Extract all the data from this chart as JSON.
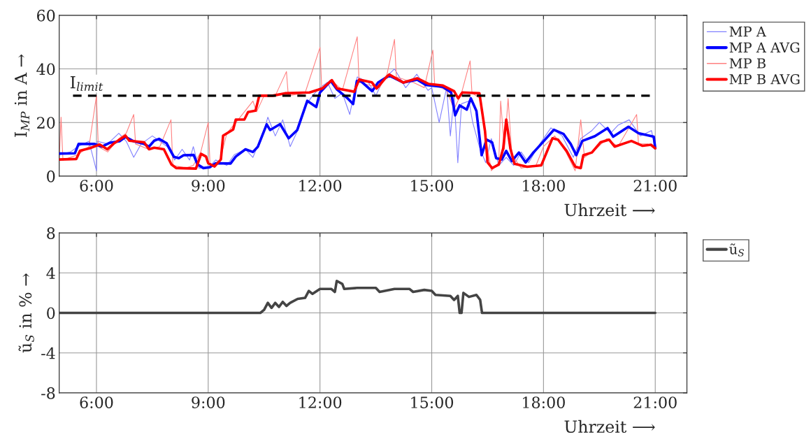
{
  "chart_data": [
    {
      "type": "line",
      "ylabel": "I$_{MP}$ in A →",
      "xlabel": "Uhrzeit ⟶",
      "xlim": [
        5,
        21.85
      ],
      "xticks": [
        {
          "value": 6,
          "label": "6:00"
        },
        {
          "value": 9,
          "label": "9:00"
        },
        {
          "value": 12,
          "label": "12:00"
        },
        {
          "value": 15,
          "label": "15:00"
        },
        {
          "value": 18,
          "label": "18:00"
        },
        {
          "value": 21,
          "label": "21:00"
        }
      ],
      "ylim": [
        0,
        60
      ],
      "yticks": [
        0,
        20,
        40,
        60
      ],
      "grid": true,
      "legend": "right",
      "ref_lines": [
        {
          "axis": "y",
          "value": 30,
          "label": "I$_{limit}$",
          "color": "#000000",
          "line_style": "dashed"
        }
      ],
      "series": [
        {
          "name": "MP A",
          "color": "#8080ff",
          "x": [
            5.0,
            5.3,
            5.5,
            5.8,
            6.0,
            6.02,
            6.3,
            6.6,
            6.8,
            7.0,
            7.2,
            7.5,
            7.7,
            7.9,
            8.1,
            8.3,
            8.5,
            8.6,
            8.75,
            9.0,
            9.2,
            9.5,
            9.7,
            10.0,
            10.2,
            10.5,
            10.6,
            10.8,
            11.0,
            11.2,
            11.4,
            11.6,
            11.8,
            12.0,
            12.2,
            12.4,
            12.6,
            12.8,
            13.0,
            13.3,
            13.5,
            13.7,
            14.0,
            14.3,
            14.6,
            14.9,
            15.0,
            15.2,
            15.4,
            15.5,
            15.6,
            15.7,
            15.8,
            16.0,
            16.1,
            16.3,
            16.45,
            16.6,
            16.8,
            17.0,
            17.2,
            17.4,
            17.6,
            17.9,
            18.2,
            18.5,
            18.8,
            19.0,
            19.3,
            19.5,
            19.8,
            20.0,
            20.3,
            20.6,
            20.9,
            21.0
          ],
          "values": [
            8,
            9,
            11,
            13,
            2,
            13,
            12,
            16,
            13,
            7,
            12,
            15,
            13,
            11,
            6,
            10,
            6,
            11,
            3,
            3,
            6,
            4,
            8,
            10,
            7,
            17,
            22,
            15,
            21,
            11,
            17,
            26,
            30,
            33,
            35,
            29,
            31,
            23,
            37,
            35,
            30,
            36,
            40,
            33,
            38,
            32,
            33,
            20,
            33,
            15,
            30,
            5,
            27,
            28,
            20,
            10,
            5,
            14,
            4,
            7,
            4,
            9,
            5,
            12,
            18,
            15,
            7,
            14,
            17,
            20,
            16,
            19,
            21,
            15,
            17,
            10
          ]
        },
        {
          "name": "MP A AVG",
          "color": "#0000ff",
          "x": [
            5.0,
            5.42,
            5.52,
            5.95,
            6.15,
            6.35,
            6.62,
            6.78,
            7.0,
            7.28,
            7.41,
            7.55,
            7.68,
            7.88,
            8.08,
            8.21,
            8.34,
            8.61,
            8.71,
            8.87,
            9.04,
            9.2,
            9.6,
            9.74,
            10.0,
            10.2,
            10.33,
            10.57,
            10.66,
            10.93,
            11.16,
            11.39,
            11.66,
            11.9,
            12.0,
            12.29,
            12.46,
            12.72,
            12.89,
            12.99,
            13.1,
            13.4,
            13.56,
            13.86,
            14.24,
            14.61,
            14.84,
            15.3,
            15.52,
            15.63,
            15.75,
            15.94,
            16.05,
            16.2,
            16.34,
            16.47,
            16.62,
            16.73,
            16.88,
            17.0,
            17.15,
            17.34,
            17.52,
            17.71,
            17.94,
            18.28,
            18.54,
            18.73,
            18.88,
            19.04,
            19.38,
            19.72,
            19.87,
            20.28,
            20.55,
            20.96,
            21.0
          ],
          "values": [
            8.4,
            8.5,
            12,
            12,
            11,
            12.4,
            13,
            14.6,
            13,
            12,
            11,
            13.2,
            13.9,
            12.3,
            7.2,
            6.7,
            7.8,
            7.9,
            4.4,
            3,
            3.3,
            4.8,
            4.7,
            7.3,
            10,
            9,
            10.9,
            19.3,
            17.2,
            19.4,
            14.1,
            17.2,
            28.1,
            25.8,
            31.2,
            35.5,
            32.3,
            29.3,
            26.9,
            35.5,
            35.4,
            31.7,
            34.9,
            37.5,
            34.9,
            36,
            34,
            33.3,
            31.2,
            22.7,
            26.4,
            24.8,
            29,
            24.3,
            7.8,
            13.6,
            12.6,
            6.7,
            6.2,
            9.4,
            5.6,
            8.8,
            5.1,
            8.5,
            12,
            17.3,
            15.7,
            12,
            7.8,
            13.1,
            14.9,
            17.9,
            14.7,
            18.4,
            16,
            14.7,
            10.4
          ]
        },
        {
          "name": "MP B",
          "color": "#ff8080",
          "x": [
            5.0,
            5.05,
            5.1,
            5.5,
            5.8,
            6.0,
            6.05,
            6.3,
            6.6,
            6.8,
            7.0,
            7.05,
            7.4,
            7.7,
            8.0,
            8.05,
            8.4,
            8.6,
            8.8,
            9.0,
            9.05,
            9.3,
            9.5,
            9.8,
            10.2,
            10.3,
            10.5,
            10.8,
            11.1,
            11.15,
            11.6,
            12.0,
            12.05,
            12.3,
            12.6,
            13.0,
            13.05,
            13.3,
            13.6,
            13.8,
            14.0,
            14.05,
            14.5,
            14.8,
            15.03,
            15.08,
            15.4,
            15.6,
            15.8,
            16.03,
            16.08,
            16.3,
            16.45,
            16.6,
            16.8,
            16.85,
            16.95,
            17.05,
            17.15,
            17.4,
            17.8,
            18.0,
            18.3,
            18.6,
            18.85,
            19.0,
            19.1,
            19.4,
            19.7,
            20.0,
            20.5,
            20.55,
            20.8,
            21.0
          ],
          "values": [
            6,
            22,
            6,
            8,
            11,
            30,
            11,
            9,
            14,
            16,
            23,
            12,
            10,
            11,
            21,
            4,
            3,
            4,
            9,
            20,
            4,
            5,
            16,
            21,
            28,
            24,
            30,
            30,
            39,
            30,
            31,
            48,
            32,
            36,
            32,
            52,
            35,
            34,
            33,
            38,
            51,
            37,
            35,
            33,
            47,
            34,
            32,
            25,
            31,
            43,
            31,
            29,
            14,
            2,
            5,
            28,
            10,
            29,
            8,
            3,
            4,
            11,
            15,
            9,
            2,
            21,
            7,
            10,
            14,
            11,
            23,
            12,
            12,
            10
          ]
        },
        {
          "name": "MP B AVG",
          "color": "#ff0000",
          "x": [
            5.0,
            5.46,
            5.56,
            5.82,
            6.09,
            6.29,
            6.48,
            6.78,
            6.88,
            7.28,
            7.41,
            7.55,
            7.81,
            8.01,
            8.14,
            8.67,
            8.81,
            8.94,
            9.0,
            9.17,
            9.34,
            9.4,
            9.67,
            9.74,
            9.97,
            10.07,
            10.27,
            10.37,
            10.73,
            11.06,
            11.72,
            12.06,
            12.32,
            12.46,
            12.92,
            13.05,
            13.39,
            13.52,
            13.78,
            13.86,
            14.24,
            14.61,
            14.92,
            15.3,
            15.6,
            15.71,
            15.82,
            16.28,
            16.43,
            16.5,
            16.62,
            16.8,
            16.92,
            17.0,
            17.11,
            17.22,
            17.56,
            17.94,
            18.24,
            18.39,
            18.62,
            18.85,
            19.0,
            19.07,
            19.3,
            19.53,
            19.76,
            19.91,
            20.36,
            20.66,
            20.89,
            21.0
          ],
          "values": [
            6.2,
            6.4,
            9.5,
            10.4,
            11.8,
            10,
            12.3,
            15.1,
            13.2,
            12.6,
            10,
            10.6,
            10,
            4.4,
            3,
            2.8,
            8.3,
            7.3,
            4.8,
            3.6,
            6.2,
            15.1,
            17.4,
            21.1,
            21.1,
            23.9,
            24.4,
            30,
            30,
            30.9,
            31.2,
            32.7,
            35.8,
            32.7,
            31.5,
            36,
            35,
            32.7,
            36.9,
            37.9,
            34.9,
            36.5,
            34.4,
            33.8,
            31.7,
            29,
            31.2,
            30.9,
            16.8,
            5.1,
            3,
            4.3,
            10.4,
            21.1,
            10.4,
            4.6,
            3.5,
            4,
            14.1,
            13.6,
            9.4,
            3.5,
            3,
            7.8,
            8.8,
            12.6,
            13.6,
            11,
            13.1,
            11.3,
            11.7,
            10.4
          ]
        }
      ]
    },
    {
      "type": "line",
      "ylabel": "ũ$_{S}$ in % →",
      "xlabel": "Uhrzeit ⟶",
      "xlim": [
        5,
        21.85
      ],
      "xticks": [
        {
          "value": 6,
          "label": "6:00"
        },
        {
          "value": 9,
          "label": "9:00"
        },
        {
          "value": 12,
          "label": "12:00"
        },
        {
          "value": 15,
          "label": "15:00"
        },
        {
          "value": 18,
          "label": "18:00"
        },
        {
          "value": 21,
          "label": "21:00"
        }
      ],
      "ylim": [
        -8,
        8
      ],
      "yticks": [
        -8,
        -4,
        0,
        4,
        8
      ],
      "grid": true,
      "legend": "right",
      "series": [
        {
          "name": "ũ$_{S}$",
          "color": "#444444",
          "x": [
            5.0,
            10.4,
            10.5,
            10.6,
            10.7,
            10.8,
            10.9,
            11.0,
            11.1,
            11.2,
            11.4,
            11.6,
            11.7,
            11.8,
            12.0,
            12.3,
            12.4,
            12.45,
            12.6,
            12.65,
            13.0,
            13.5,
            13.6,
            14.0,
            14.4,
            14.5,
            14.8,
            15.0,
            15.1,
            15.5,
            15.6,
            15.7,
            15.75,
            15.8,
            15.85,
            16.0,
            16.2,
            16.3,
            16.35,
            21.0
          ],
          "values": [
            0,
            0,
            0.3,
            1.0,
            0.5,
            1.0,
            0.6,
            1.1,
            0.7,
            1.0,
            1.4,
            1.5,
            2.2,
            1.9,
            2.4,
            2.4,
            2.1,
            3.2,
            2.9,
            2.4,
            2.5,
            2.5,
            2.1,
            2.4,
            2.4,
            2.1,
            2.3,
            2.2,
            1.8,
            1.7,
            1.3,
            1.7,
            0,
            0,
            2.0,
            1.6,
            1.8,
            1.3,
            0,
            0
          ]
        }
      ]
    }
  ]
}
